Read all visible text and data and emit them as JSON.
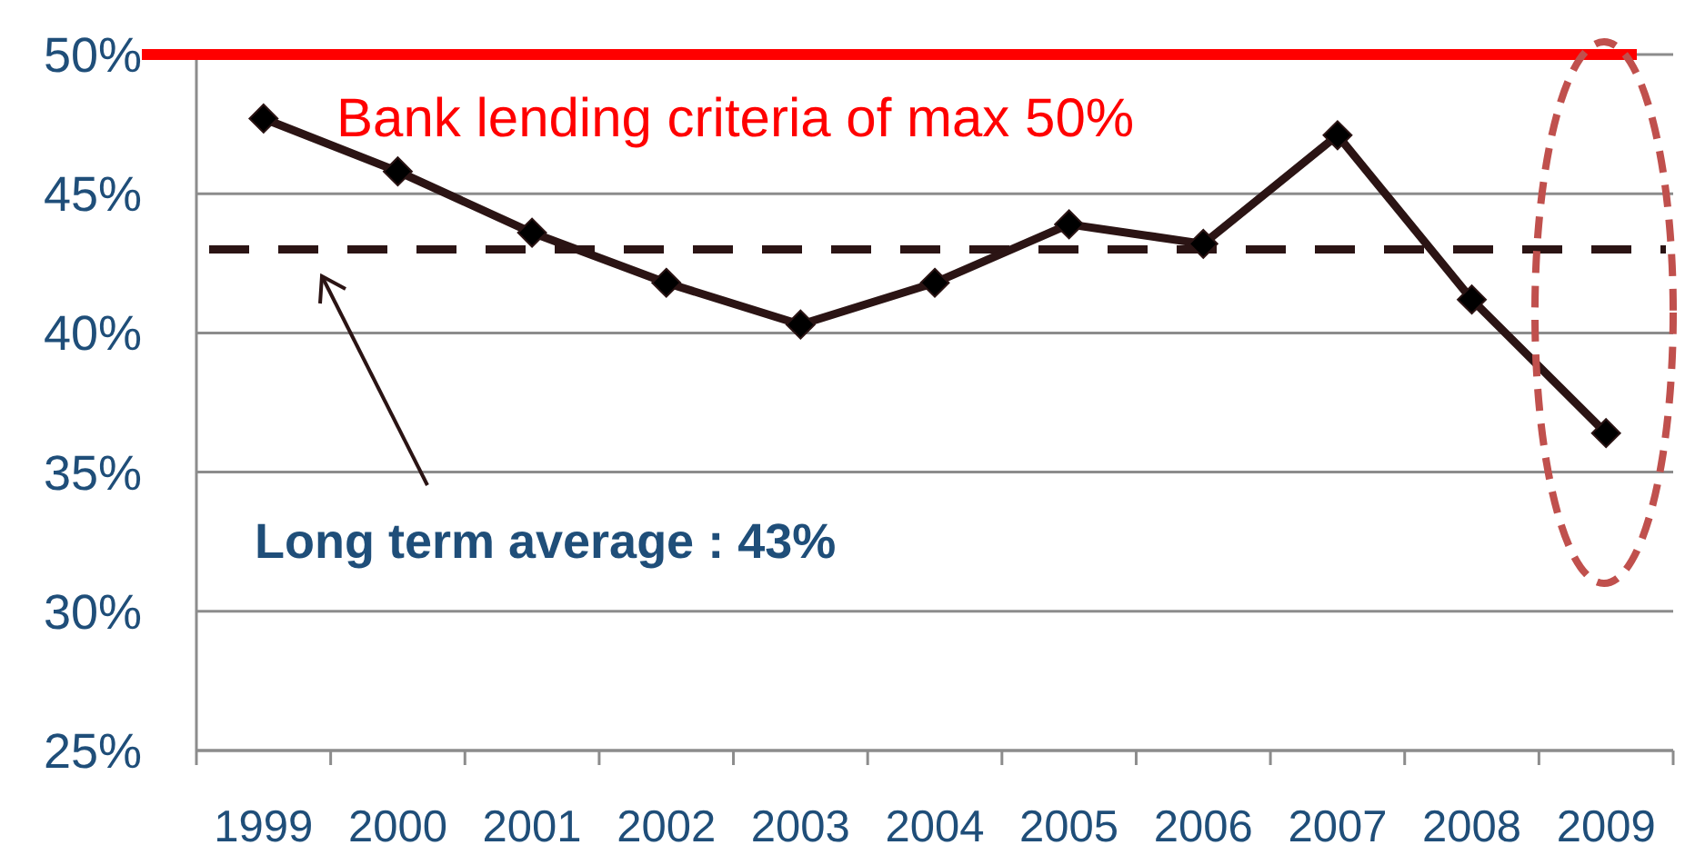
{
  "chart_data": {
    "type": "line",
    "categories": [
      "1999",
      "2000",
      "2001",
      "2002",
      "2003",
      "2004",
      "2005",
      "2006",
      "2007",
      "2008",
      "2009"
    ],
    "series": [
      {
        "color": "#2b1414",
        "values": [
          47.7,
          45.8,
          43.6,
          41.8,
          40.3,
          41.8,
          43.9,
          43.2,
          47.1,
          41.2,
          36.4
        ]
      }
    ],
    "ylim": [
      25,
      50
    ],
    "yticks": [
      {
        "value": 25,
        "label": "25%"
      },
      {
        "value": 30,
        "label": "30%"
      },
      {
        "value": 35,
        "label": "35%"
      },
      {
        "value": 40,
        "label": "40%"
      },
      {
        "value": 45,
        "label": "45%"
      },
      {
        "value": 50,
        "label": "50%"
      }
    ],
    "grid": "y",
    "marker": "diamond",
    "line_style": "solid",
    "annotations": [
      "Long term average : 43%"
    ],
    "ref_lines": [
      {
        "axis": "y",
        "value": 50,
        "label": "Bank lending criteria of max 50%",
        "color": "#ff0000",
        "line_style": "solid"
      },
      {
        "axis": "y",
        "value": 43,
        "color": "#2b1414",
        "line_style": "dashed"
      }
    ]
  }
}
